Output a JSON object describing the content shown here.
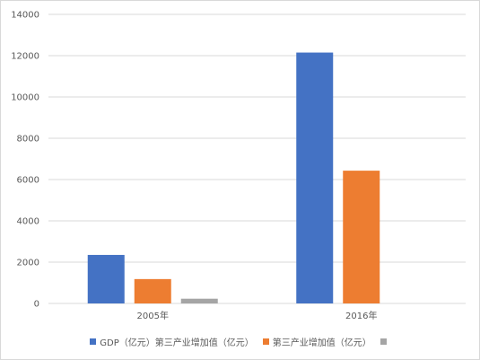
{
  "chart_data": {
    "type": "bar",
    "categories": [
      "2005年",
      "2016年"
    ],
    "series": [
      {
        "name": "GDP（亿元）第三产业增加值（亿元）",
        "color": "#4472C4",
        "values": [
          2350,
          12150
        ]
      },
      {
        "name": "第三产业增加值（亿元）",
        "color": "#ED7D31",
        "values": [
          1180,
          6430
        ]
      },
      {
        "name": "",
        "color": "#A5A5A5",
        "values": [
          230,
          null
        ]
      }
    ],
    "ylim": [
      0,
      14000
    ],
    "yticks": [
      "0",
      "2000",
      "4000",
      "6000",
      "8000",
      "10000",
      "12000",
      "14000"
    ],
    "grid": true,
    "legend_position": "bottom",
    "title": "",
    "xlabel": "",
    "ylabel": ""
  }
}
